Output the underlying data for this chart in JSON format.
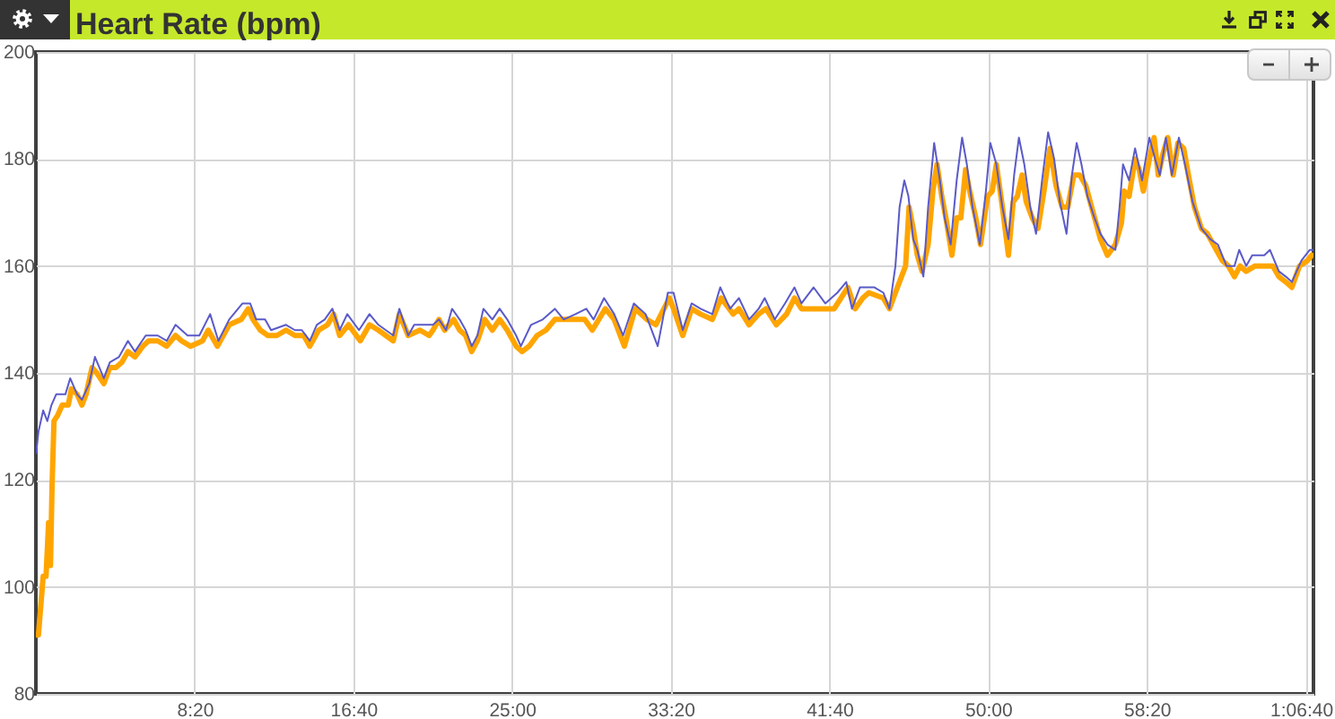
{
  "chart_data": {
    "type": "line",
    "title": "Heart Rate (bpm)",
    "xlim": [
      0,
      4025
    ],
    "ylim": [
      80,
      200
    ],
    "xticks": [
      {
        "value": 500,
        "label": "8:20"
      },
      {
        "value": 1000,
        "label": "16:40"
      },
      {
        "value": 1500,
        "label": "25:00"
      },
      {
        "value": 2000,
        "label": "33:20"
      },
      {
        "value": 2500,
        "label": "41:40"
      },
      {
        "value": 3000,
        "label": "50:00"
      },
      {
        "value": 3500,
        "label": "58:20"
      },
      {
        "value": 4000,
        "label": "1:06:40"
      }
    ],
    "yticks": [
      80,
      100,
      120,
      140,
      160,
      180,
      200
    ],
    "grid": true,
    "series": [
      {
        "color": "#ffa500",
        "x": [
          0,
          8,
          23,
          32,
          40,
          46,
          51,
          57,
          68,
          83,
          102,
          112,
          130,
          145,
          158,
          177,
          192,
          214,
          233,
          252,
          271,
          290,
          312,
          337,
          355,
          384,
          412,
          440,
          459,
          487,
          525,
          543,
          572,
          609,
          647,
          669,
          684,
          707,
          731,
          759,
          788,
          816,
          844,
          863,
          891,
          919,
          938,
          957,
          985,
          1022,
          1051,
          1079,
          1126,
          1145,
          1173,
          1210,
          1239,
          1251,
          1270,
          1288,
          1316,
          1335,
          1354,
          1373,
          1391,
          1414,
          1438,
          1461,
          1485,
          1513,
          1532,
          1554,
          1579,
          1607,
          1635,
          1663,
          1700,
          1729,
          1753,
          1794,
          1822,
          1854,
          1888,
          1925,
          1953,
          1996,
          2009,
          2038,
          2066,
          2094,
          2131,
          2159,
          2197,
          2215,
          2247,
          2277,
          2300,
          2333,
          2365,
          2390,
          2412,
          2450,
          2487,
          2515,
          2558,
          2581,
          2605,
          2624,
          2670,
          2689,
          2708,
          2727,
          2740,
          2751,
          2764,
          2777,
          2792,
          2811,
          2826,
          2839,
          2854,
          2867,
          2886,
          2901,
          2914,
          2929,
          2942,
          2961,
          2976,
          2998,
          3013,
          3026,
          3045,
          3064,
          3079,
          3092,
          3107,
          3120,
          3139,
          3157,
          3176,
          3195,
          3214,
          3233,
          3251,
          3270,
          3289,
          3308,
          3326,
          3354,
          3376,
          3401,
          3420,
          3429,
          3444,
          3463,
          3476,
          3489,
          3508,
          3523,
          3536,
          3551,
          3566,
          3583,
          3598,
          3616,
          3631,
          3650,
          3672,
          3691,
          3719,
          3738,
          3757,
          3776,
          3794,
          3813,
          3841,
          3878,
          3897,
          3916,
          3938,
          3957,
          3981,
          4006,
          4019
        ],
        "values": [
          91,
          91,
          102,
          102,
          112,
          104,
          119,
          131,
          132,
          134,
          134,
          137,
          136,
          134,
          136,
          141,
          140,
          138,
          141,
          141,
          142,
          144,
          143,
          145,
          146,
          146,
          145,
          147,
          146,
          145,
          146,
          148,
          145,
          149,
          150,
          152,
          150,
          148,
          147,
          147,
          148,
          147,
          147,
          145,
          148,
          149,
          151,
          147,
          149,
          146,
          149,
          148,
          146,
          151,
          147,
          148,
          147,
          148,
          150,
          148,
          150,
          148,
          147,
          144,
          146,
          150,
          148,
          150,
          148,
          145,
          144,
          145,
          147,
          148,
          150,
          150,
          150,
          150,
          148,
          152,
          150,
          145,
          152,
          150,
          149,
          154,
          152,
          147,
          152,
          151,
          150,
          154,
          151,
          152,
          149,
          151,
          152,
          149,
          151,
          154,
          152,
          152,
          152,
          152,
          156,
          152,
          154,
          155,
          154,
          152,
          155,
          158,
          160,
          171,
          167,
          162,
          159,
          164,
          174,
          179,
          173,
          169,
          162,
          169,
          169,
          178,
          174,
          169,
          164,
          173,
          174,
          179,
          171,
          162,
          172,
          173,
          177,
          172,
          169,
          167,
          174,
          182,
          175,
          171,
          171,
          177,
          177,
          175,
          171,
          165,
          162,
          164,
          168,
          174,
          173,
          180,
          178,
          174,
          180,
          184,
          177,
          181,
          184,
          177,
          183,
          182,
          177,
          171,
          167,
          166,
          163,
          161,
          160,
          158,
          160,
          159,
          160,
          160,
          160,
          158,
          157,
          156,
          160,
          161,
          162
        ]
      },
      {
        "color": "#5a5ac8",
        "x": [
          1,
          8,
          23,
          36,
          49,
          64,
          93,
          108,
          130,
          145,
          168,
          186,
          214,
          233,
          262,
          290,
          312,
          346,
          384,
          412,
          440,
          478,
          515,
          549,
          575,
          609,
          651,
          675,
          694,
          722,
          741,
          788,
          816,
          838,
          863,
          885,
          910,
          934,
          957,
          981,
          1018,
          1051,
          1079,
          1126,
          1145,
          1173,
          1192,
          1229,
          1251,
          1270,
          1292,
          1311,
          1335,
          1354,
          1373,
          1391,
          1410,
          1438,
          1461,
          1485,
          1513,
          1528,
          1560,
          1597,
          1635,
          1663,
          1700,
          1734,
          1757,
          1790,
          1822,
          1850,
          1884,
          1921,
          1959,
          1991,
          2009,
          2038,
          2066,
          2094,
          2131,
          2156,
          2187,
          2215,
          2247,
          2277,
          2296,
          2328,
          2360,
          2390,
          2412,
          2450,
          2487,
          2525,
          2553,
          2571,
          2596,
          2605,
          2642,
          2670,
          2689,
          2708,
          2721,
          2736,
          2749,
          2764,
          2777,
          2796,
          2811,
          2830,
          2848,
          2863,
          2882,
          2901,
          2918,
          2933,
          2951,
          2974,
          2993,
          3007,
          3026,
          3045,
          3064,
          3082,
          3097,
          3114,
          3133,
          3151,
          3170,
          3189,
          3208,
          3226,
          3247,
          3264,
          3279,
          3294,
          3313,
          3335,
          3354,
          3376,
          3401,
          3414,
          3425,
          3444,
          3463,
          3485,
          3508,
          3526,
          3541,
          3560,
          3579,
          3601,
          3620,
          3644,
          3672,
          3700,
          3724,
          3751,
          3776,
          3791,
          3813,
          3832,
          3870,
          3888,
          3916,
          3938,
          3957,
          3987,
          4013,
          4024
        ],
        "values": [
          125,
          129,
          133,
          131,
          134,
          136,
          136,
          139,
          136,
          135,
          138,
          143,
          139,
          142,
          143,
          146,
          144,
          147,
          147,
          146,
          149,
          147,
          147,
          151,
          146,
          150,
          153,
          153,
          150,
          150,
          148,
          149,
          148,
          148,
          146,
          149,
          150,
          152,
          148,
          151,
          148,
          151,
          149,
          147,
          152,
          147,
          149,
          149,
          149,
          150,
          148,
          152,
          150,
          148,
          145,
          147,
          152,
          150,
          152,
          150,
          147,
          145,
          149,
          150,
          152,
          150,
          151,
          152,
          150,
          154,
          151,
          147,
          153,
          151,
          145,
          155,
          155,
          148,
          153,
          152,
          151,
          156,
          152,
          154,
          150,
          152,
          154,
          150,
          153,
          156,
          153,
          156,
          153,
          155,
          157,
          152,
          156,
          156,
          156,
          155,
          152,
          160,
          171,
          176,
          173,
          165,
          163,
          158,
          171,
          183,
          176,
          169,
          164,
          176,
          184,
          179,
          171,
          164,
          174,
          183,
          179,
          171,
          165,
          177,
          184,
          179,
          171,
          166,
          176,
          185,
          180,
          172,
          166,
          177,
          183,
          179,
          173,
          169,
          166,
          164,
          163,
          171,
          179,
          176,
          182,
          176,
          184,
          180,
          177,
          184,
          177,
          184,
          179,
          172,
          167,
          165,
          164,
          160,
          160,
          163,
          160,
          162,
          162,
          163,
          159,
          158,
          157,
          161,
          163,
          163
        ]
      }
    ]
  }
}
